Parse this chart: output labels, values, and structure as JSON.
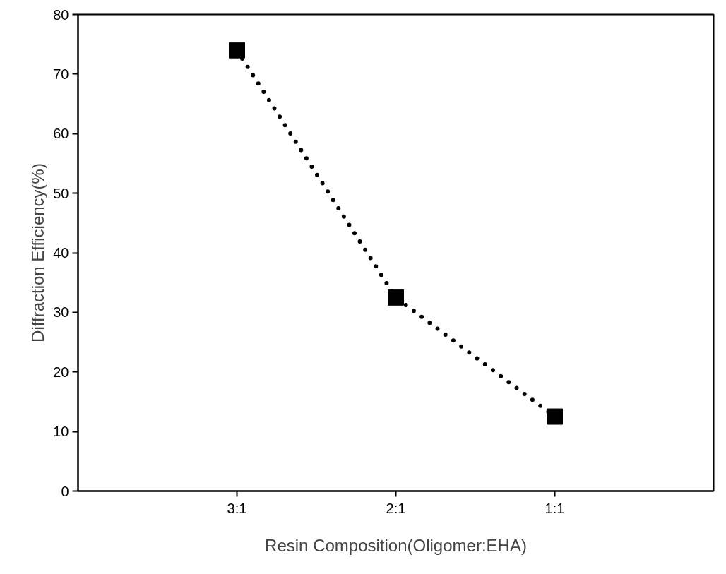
{
  "chart_data": {
    "type": "line",
    "xlabel": "Resin Composition(Oligomer:EHA)",
    "ylabel": "Diffraction Efficiency(%)",
    "categories": [
      "3:1",
      "2:1",
      "1:1"
    ],
    "series": [
      {
        "color": "#000000",
        "values": [
          74,
          32.5,
          12.5
        ]
      }
    ],
    "ylim": [
      0,
      80
    ],
    "yticks": [
      0,
      10,
      20,
      30,
      40,
      50,
      60,
      70,
      80
    ],
    "marker": "square",
    "line_style": "dotted",
    "grid": false
  }
}
